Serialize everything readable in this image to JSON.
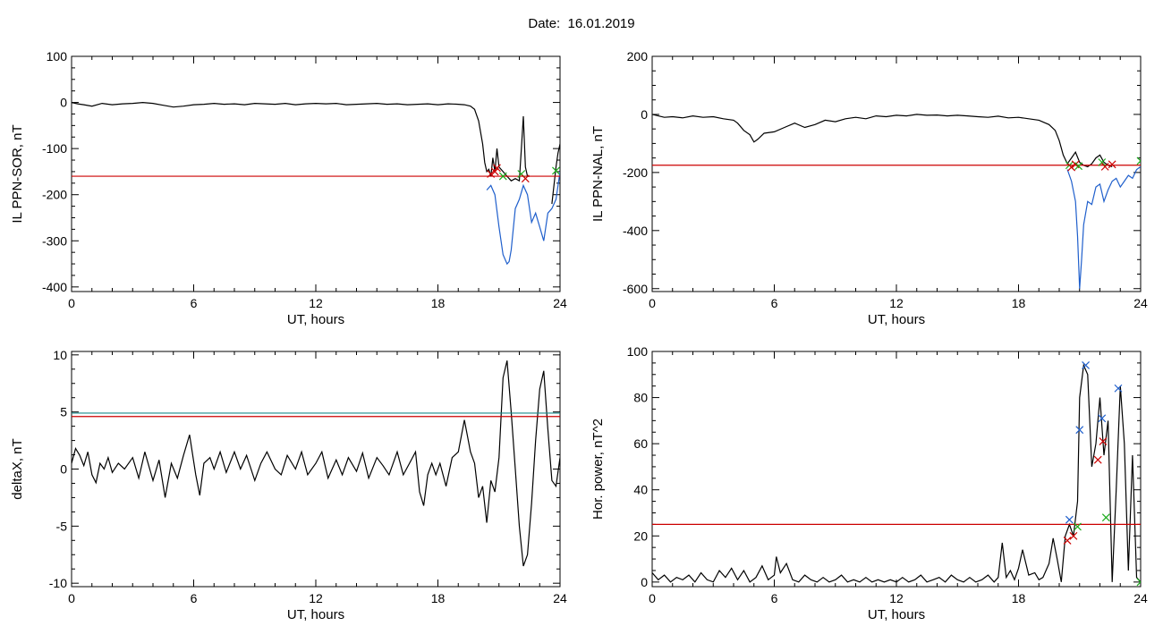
{
  "figure": {
    "title": "Date:  16.01.2019"
  },
  "chart_data": [
    {
      "id": "sor",
      "type": "line",
      "xlabel": "UT, hours",
      "ylabel": "IL PPN-SOR, nT",
      "xlim": [
        0,
        24
      ],
      "ylim": [
        -410,
        100
      ],
      "xticks": [
        0,
        6,
        12,
        18,
        24
      ],
      "yticks": [
        100,
        0,
        -100,
        -200,
        -300,
        -400
      ],
      "threshold_lines": [
        {
          "y": -160,
          "color": "#cc0000"
        }
      ],
      "series": [
        {
          "color": "#000000",
          "x": [
            0,
            0.3,
            0.6,
            1,
            1.5,
            2,
            2.5,
            3,
            3.5,
            4,
            4.5,
            5,
            5.5,
            6,
            6.5,
            7,
            7.5,
            8,
            8.5,
            9,
            9.5,
            10,
            10.5,
            11,
            11.5,
            12,
            12.5,
            13,
            13.5,
            14,
            14.5,
            15,
            15.5,
            16,
            16.5,
            17,
            17.5,
            18,
            18.5,
            19,
            19.3,
            19.6,
            19.8,
            20,
            20.2,
            20.3,
            20.4,
            20.5,
            20.6,
            20.7,
            20.8,
            20.9,
            21,
            21.2,
            21.4,
            21.6,
            21.8,
            22,
            22.1,
            22.2,
            22.3,
            22.4,
            22.5
          ],
          "y": [
            0,
            -3,
            -5,
            -8,
            -2,
            -5,
            -3,
            -2,
            0,
            -2,
            -6,
            -10,
            -8,
            -5,
            -4,
            -2,
            -4,
            -3,
            -5,
            -2,
            -3,
            -4,
            -2,
            -5,
            -3,
            -2,
            -3,
            -2,
            -5,
            -4,
            -3,
            -2,
            -4,
            -3,
            -5,
            -4,
            -3,
            -5,
            -3,
            -4,
            -5,
            -8,
            -15,
            -40,
            -90,
            -130,
            -150,
            -145,
            -160,
            -120,
            -150,
            -100,
            -140,
            -150,
            -160,
            -170,
            -165,
            -170,
            -100,
            -30,
            -140,
            -160,
            -160
          ]
        },
        {
          "color": "#1f5fcc",
          "x": [
            20.4,
            20.6,
            20.8,
            21,
            21.2,
            21.4,
            21.5,
            21.6,
            21.8,
            22,
            22.2,
            22.4,
            22.6,
            22.8,
            23,
            23.2,
            23.4,
            23.6,
            23.8,
            24
          ],
          "y": [
            -190,
            -180,
            -200,
            -270,
            -330,
            -350,
            -345,
            -320,
            -230,
            -210,
            -180,
            -200,
            -260,
            -240,
            -270,
            -300,
            -240,
            -230,
            -210,
            -150
          ]
        },
        {
          "color": "#000000",
          "x": [
            23.6,
            23.7,
            23.8,
            23.9,
            24
          ],
          "y": [
            -220,
            -180,
            -140,
            -110,
            -90
          ]
        }
      ],
      "markers": [
        {
          "x": 20.6,
          "y": -155,
          "color": "#cc0000"
        },
        {
          "x": 20.8,
          "y": -150,
          "color": "#cc0000"
        },
        {
          "x": 20.9,
          "y": -142,
          "color": "#cc0000"
        },
        {
          "x": 21.2,
          "y": -160,
          "color": "#1aaa1a"
        },
        {
          "x": 22.1,
          "y": -155,
          "color": "#1aaa1a"
        },
        {
          "x": 22.3,
          "y": -165,
          "color": "#cc0000"
        },
        {
          "x": 23.8,
          "y": -148,
          "color": "#1aaa1a"
        }
      ]
    },
    {
      "id": "nal",
      "type": "line",
      "xlabel": "UT, hours",
      "ylabel": "IL PPN-NAL, nT",
      "xlim": [
        0,
        24
      ],
      "ylim": [
        -610,
        200
      ],
      "xticks": [
        0,
        6,
        12,
        18,
        24
      ],
      "yticks": [
        200,
        0,
        -200,
        -400,
        -600
      ],
      "threshold_lines": [
        {
          "y": -175,
          "color": "#cc0000"
        }
      ],
      "series": [
        {
          "color": "#000000",
          "x": [
            0,
            0.3,
            0.6,
            1,
            1.5,
            2,
            2.5,
            3,
            3.5,
            4,
            4.2,
            4.5,
            4.8,
            5,
            5.2,
            5.5,
            6,
            6.5,
            7,
            7.5,
            8,
            8.5,
            9,
            9.5,
            10,
            10.5,
            11,
            11.5,
            12,
            12.5,
            13,
            13.5,
            14,
            14.5,
            15,
            15.5,
            16,
            16.5,
            17,
            17.5,
            18,
            18.5,
            19,
            19.5,
            19.8,
            20,
            20.2,
            20.4,
            20.6,
            20.8,
            21,
            21.2,
            21.4,
            21.6,
            21.8,
            22,
            22.2,
            22.4,
            22.6
          ],
          "y": [
            0,
            -5,
            -10,
            -8,
            -12,
            -5,
            -10,
            -8,
            -15,
            -20,
            -30,
            -55,
            -70,
            -95,
            -85,
            -65,
            -60,
            -45,
            -30,
            -45,
            -35,
            -20,
            -25,
            -15,
            -10,
            -15,
            -5,
            -8,
            -3,
            -5,
            0,
            -3,
            -2,
            -5,
            -3,
            -5,
            -8,
            -10,
            -6,
            -12,
            -10,
            -15,
            -20,
            -35,
            -55,
            -90,
            -140,
            -170,
            -150,
            -130,
            -165,
            -175,
            -180,
            -170,
            -150,
            -140,
            -165,
            -175,
            -180
          ]
        },
        {
          "color": "#1f5fcc",
          "x": [
            20.4,
            20.6,
            20.8,
            20.9,
            21,
            21.1,
            21.2,
            21.4,
            21.6,
            21.8,
            22,
            22.2,
            22.4,
            22.6,
            22.8,
            23,
            23.2,
            23.4,
            23.6,
            23.8,
            24
          ],
          "y": [
            -190,
            -230,
            -300,
            -420,
            -600,
            -500,
            -380,
            -300,
            -310,
            -250,
            -240,
            -300,
            -260,
            -230,
            -220,
            -250,
            -230,
            -210,
            -220,
            -190,
            -180
          ]
        }
      ],
      "markers": [
        {
          "x": 20.5,
          "y": -175,
          "color": "#1aaa1a"
        },
        {
          "x": 20.6,
          "y": -182,
          "color": "#cc0000"
        },
        {
          "x": 20.8,
          "y": -172,
          "color": "#cc0000"
        },
        {
          "x": 20.95,
          "y": -178,
          "color": "#1aaa1a"
        },
        {
          "x": 22.1,
          "y": -165,
          "color": "#1aaa1a"
        },
        {
          "x": 22.25,
          "y": -180,
          "color": "#cc0000"
        },
        {
          "x": 22.6,
          "y": -172,
          "color": "#cc0000"
        },
        {
          "x": 24,
          "y": -160,
          "color": "#1aaa1a"
        }
      ]
    },
    {
      "id": "deltax",
      "type": "line",
      "xlabel": "UT, hours",
      "ylabel": "deltaX, nT",
      "xlim": [
        0,
        24
      ],
      "ylim": [
        -10.3,
        10.3
      ],
      "xticks": [
        0,
        6,
        12,
        18,
        24
      ],
      "yticks": [
        10,
        5,
        0,
        -5,
        -10
      ],
      "threshold_lines": [
        {
          "y": 4.9,
          "color": "#1a8a8a"
        },
        {
          "y": 4.6,
          "color": "#cc0000"
        }
      ],
      "series": [
        {
          "color": "#000000",
          "x": [
            0,
            0.2,
            0.4,
            0.6,
            0.8,
            1,
            1.2,
            1.4,
            1.6,
            1.8,
            2,
            2.3,
            2.6,
            3,
            3.3,
            3.6,
            4,
            4.3,
            4.6,
            4.9,
            5.2,
            5.5,
            5.8,
            6.1,
            6.3,
            6.5,
            6.8,
            7,
            7.3,
            7.6,
            8,
            8.3,
            8.6,
            9,
            9.3,
            9.6,
            10,
            10.3,
            10.6,
            11,
            11.3,
            11.6,
            12,
            12.3,
            12.6,
            13,
            13.3,
            13.6,
            14,
            14.3,
            14.6,
            15,
            15.3,
            15.6,
            16,
            16.3,
            16.6,
            16.9,
            17.1,
            17.3,
            17.5,
            17.7,
            17.9,
            18.1,
            18.4,
            18.7,
            19,
            19.3,
            19.6,
            19.8,
            20,
            20.2,
            20.4,
            20.6,
            20.8,
            21,
            21.2,
            21.4,
            21.6,
            21.8,
            22,
            22.2,
            22.4,
            22.6,
            22.8,
            23,
            23.2,
            23.4,
            23.6,
            23.8,
            24
          ],
          "y": [
            0.5,
            1.8,
            1.2,
            0.3,
            1.5,
            -0.5,
            -1.2,
            0.5,
            0,
            1,
            -0.3,
            0.5,
            0,
            1,
            -0.8,
            1.5,
            -1,
            0.8,
            -2.5,
            0.5,
            -0.8,
            1.2,
            3,
            -0.5,
            -2.3,
            0.5,
            1,
            0,
            1.5,
            -0.3,
            1.5,
            0,
            1.2,
            -1,
            0.5,
            1.5,
            0,
            -0.5,
            1.2,
            0,
            1.5,
            -0.5,
            0.5,
            1.5,
            -0.8,
            0.8,
            -0.5,
            1,
            -0.2,
            1.4,
            -0.8,
            1,
            0.3,
            -0.5,
            1.5,
            -0.5,
            0.5,
            1.5,
            -2,
            -3.2,
            -0.5,
            0.5,
            -0.5,
            0.5,
            -1.5,
            1,
            1.5,
            4.3,
            1.5,
            0.5,
            -2.5,
            -1.5,
            -4.7,
            -1,
            -2,
            1,
            8,
            9.5,
            5,
            0,
            -5,
            -8.5,
            -7.5,
            -3,
            2.5,
            7,
            8.6,
            3.5,
            -1,
            -1.5,
            1
          ]
        }
      ],
      "markers": []
    },
    {
      "id": "power",
      "type": "line",
      "xlabel": "UT, hours",
      "ylabel": "Hor. power, nT^2",
      "xlim": [
        0,
        24
      ],
      "ylim": [
        -2,
        100
      ],
      "xticks": [
        0,
        6,
        12,
        18,
        24
      ],
      "yticks": [
        100,
        80,
        60,
        40,
        20,
        0
      ],
      "threshold_lines": [
        {
          "y": 25,
          "color": "#cc0000"
        }
      ],
      "series": [
        {
          "color": "#000000",
          "x": [
            0,
            0.3,
            0.6,
            0.9,
            1.2,
            1.5,
            1.8,
            2.1,
            2.4,
            2.7,
            3,
            3.3,
            3.6,
            3.9,
            4.2,
            4.5,
            4.8,
            5.1,
            5.4,
            5.7,
            6,
            6.1,
            6.3,
            6.6,
            6.9,
            7.2,
            7.5,
            7.8,
            8.1,
            8.4,
            8.7,
            9,
            9.3,
            9.6,
            9.9,
            10.2,
            10.5,
            10.8,
            11.1,
            11.4,
            11.7,
            12,
            12.3,
            12.6,
            12.9,
            13.2,
            13.5,
            13.8,
            14.1,
            14.4,
            14.7,
            15,
            15.3,
            15.6,
            15.9,
            16.2,
            16.5,
            16.8,
            17,
            17.2,
            17.4,
            17.6,
            17.8,
            18,
            18.2,
            18.5,
            18.8,
            19,
            19.2,
            19.5,
            19.7,
            19.9,
            20.1,
            20.3,
            20.5,
            20.7,
            20.9,
            21,
            21.2,
            21.4,
            21.6,
            21.8,
            22,
            22.2,
            22.4,
            22.6,
            22.8,
            23,
            23.2,
            23.4,
            23.6,
            23.8,
            24
          ],
          "y": [
            4,
            1,
            3,
            0,
            2,
            1,
            3,
            0,
            4,
            1,
            0,
            5,
            2,
            6,
            1,
            5,
            0,
            2,
            7,
            1,
            3,
            11,
            4,
            8,
            1,
            0,
            3,
            1,
            0,
            2,
            0,
            1,
            3,
            0,
            1,
            0,
            2,
            0,
            1,
            0,
            1,
            0,
            2,
            0,
            1,
            3,
            0,
            1,
            2,
            0,
            3,
            1,
            0,
            2,
            0,
            1,
            3,
            0,
            2,
            17,
            2,
            5,
            1,
            6,
            14,
            3,
            4,
            1,
            2,
            8,
            19,
            10,
            0,
            20,
            25,
            20,
            35,
            80,
            94,
            90,
            50,
            60,
            80,
            55,
            70,
            0,
            40,
            85,
            60,
            5,
            55,
            2,
            0
          ]
        }
      ],
      "markers": [
        {
          "x": 20.4,
          "y": 18,
          "color": "#cc0000"
        },
        {
          "x": 20.5,
          "y": 27,
          "color": "#1f5fcc"
        },
        {
          "x": 20.7,
          "y": 20,
          "color": "#cc0000"
        },
        {
          "x": 20.9,
          "y": 24,
          "color": "#1aaa1a"
        },
        {
          "x": 21.0,
          "y": 66,
          "color": "#1f5fcc"
        },
        {
          "x": 21.3,
          "y": 94,
          "color": "#1f5fcc"
        },
        {
          "x": 21.9,
          "y": 53,
          "color": "#cc0000"
        },
        {
          "x": 22.1,
          "y": 71,
          "color": "#1f5fcc"
        },
        {
          "x": 22.15,
          "y": 61,
          "color": "#cc0000"
        },
        {
          "x": 22.3,
          "y": 28,
          "color": "#1aaa1a"
        },
        {
          "x": 22.9,
          "y": 84,
          "color": "#1f5fcc"
        },
        {
          "x": 24,
          "y": 0,
          "color": "#1aaa1a"
        }
      ]
    }
  ]
}
